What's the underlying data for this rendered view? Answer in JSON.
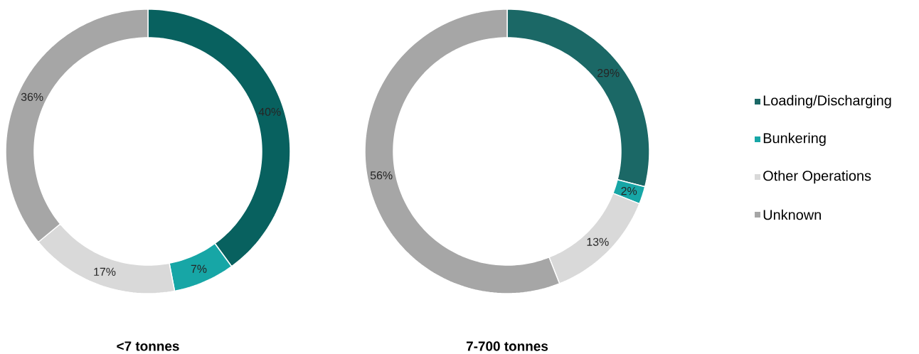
{
  "chart_data": [
    {
      "type": "donut",
      "title": "<7 tonnes",
      "categories": [
        null,
        null,
        null,
        null
      ],
      "values": [
        40,
        7,
        17,
        36
      ],
      "colors": [
        "#08615f",
        "#17a6a6",
        "#d9d9d9",
        "#a6a6a6"
      ],
      "value_labels": [
        "40%",
        "7%",
        "17%",
        "36%"
      ],
      "legend": false
    },
    {
      "type": "donut",
      "title": "7-700 tonnes",
      "categories": [
        "Loading/Discharging",
        "Bunkering",
        "Other Operations",
        "Unknown"
      ],
      "values": [
        29,
        2,
        13,
        56
      ],
      "colors": [
        "#1b6866",
        "#17a6a6",
        "#d9d9d9",
        "#a6a6a6"
      ],
      "value_labels": [
        "29%",
        "2%",
        "13%",
        "56%"
      ],
      "legend": "right"
    }
  ]
}
